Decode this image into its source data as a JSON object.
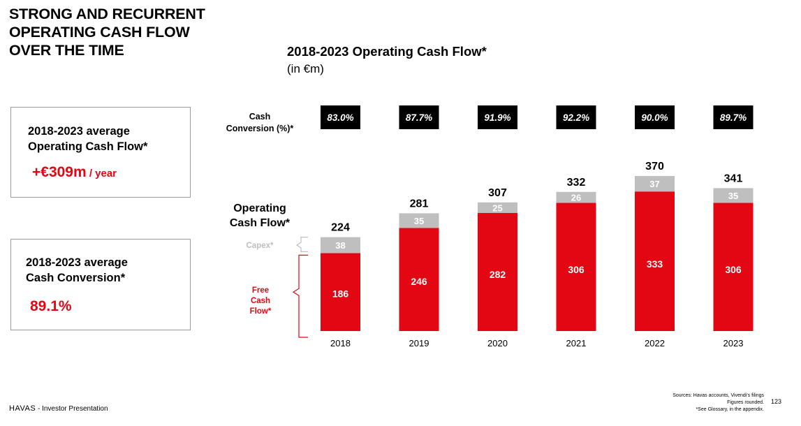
{
  "slide": {
    "headline": [
      "STRONG AND RECURRENT",
      "OPERATING CASH FLOW",
      "OVER THE TIME"
    ],
    "box_ocf": {
      "label": [
        "2018-2023 average",
        "Operating Cash Flow*"
      ],
      "value": "+€309m",
      "suffix": " / year"
    },
    "box_conv": {
      "label": [
        "2018-2023 average",
        "Cash Conversion*"
      ],
      "value": "89.1%"
    },
    "footer": {
      "brand": "HAVAS",
      "text": " - Investor Presentation"
    },
    "sources": [
      "Sources: Havas accounts, Vivendi's filings",
      "Figures rounded.",
      "*See Glossary, in the appendix."
    ],
    "page_number": "123",
    "colors": {
      "accent": "#e30613",
      "capex": "#bfbfbf",
      "badge": "#000000"
    }
  },
  "chart_data": {
    "type": "bar",
    "stacked": true,
    "title": "2018-2023 Operating Cash Flow*",
    "subtitle": "(in €m)",
    "categories": [
      "2018",
      "2019",
      "2020",
      "2021",
      "2022",
      "2023"
    ],
    "series": [
      {
        "name": "Free Cash Flow*",
        "values": [
          186,
          246,
          282,
          306,
          333,
          306
        ]
      },
      {
        "name": "Capex*",
        "values": [
          38,
          35,
          25,
          26,
          37,
          35
        ]
      }
    ],
    "totals": [
      224,
      281,
      307,
      332,
      370,
      341
    ],
    "cash_conversion": [
      "83.0%",
      "87.7%",
      "91.9%",
      "92.2%",
      "90.0%",
      "89.7%"
    ],
    "labels": {
      "cash_conversion": [
        "Cash",
        "Conversion (%)*"
      ],
      "operating_cash_flow": [
        "Operating",
        "Cash Flow*"
      ],
      "capex": "Capex*",
      "fcf": [
        "Free",
        "Cash",
        "Flow*"
      ]
    }
  }
}
